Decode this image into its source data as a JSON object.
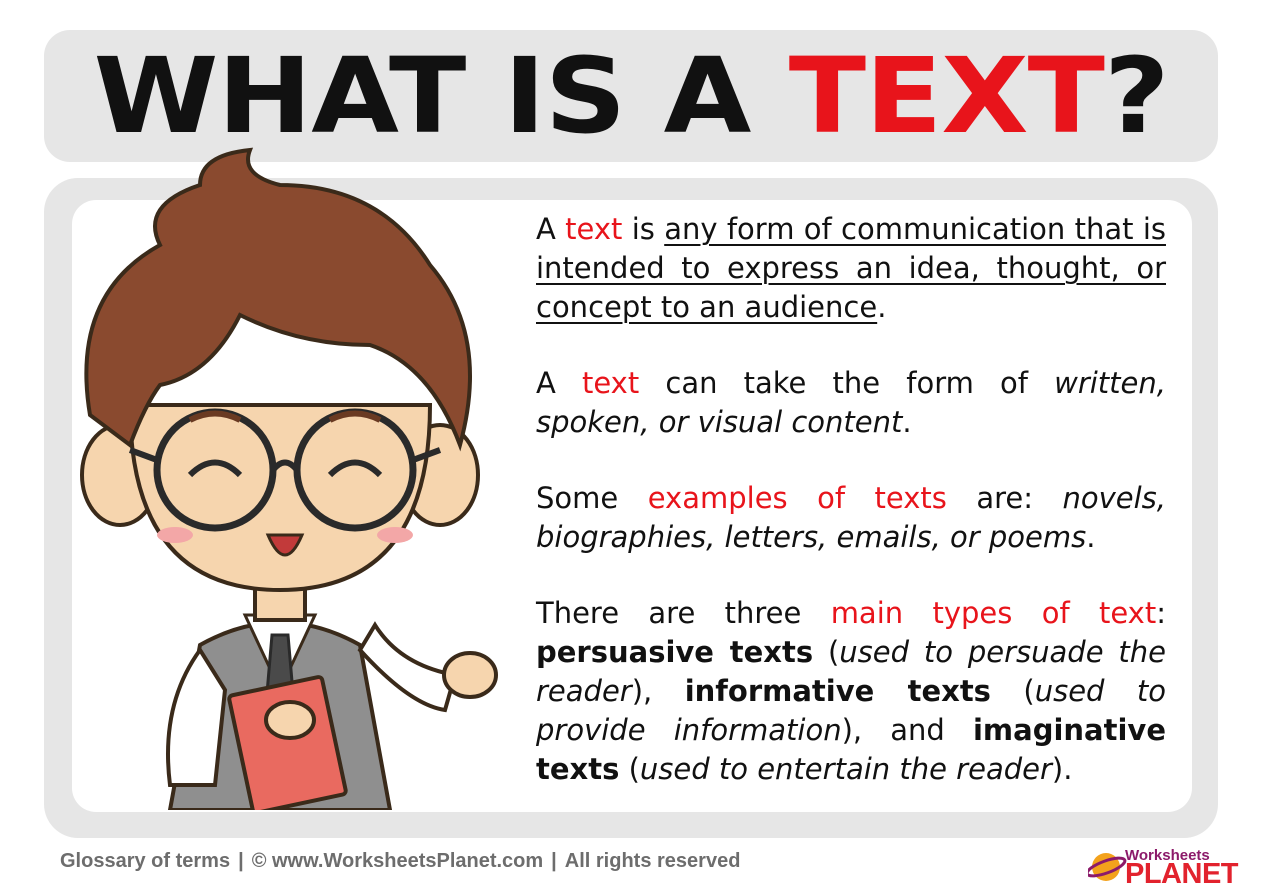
{
  "title": {
    "prefix": "WHAT IS A ",
    "accent": "TEXT",
    "suffix": "?"
  },
  "paragraphs": {
    "p1": {
      "a": "A ",
      "red": "text",
      "is": " is ",
      "def": "any form of communication that is intended to express an idea, thought, or concept to an audience",
      "end": "."
    },
    "p2": {
      "a": "A ",
      "red": "text",
      "mid": " can take the form of ",
      "ital": "written, spoken, or visual content",
      "end": "."
    },
    "p3": {
      "a": "Some ",
      "red": "examples of texts",
      "mid": " are: ",
      "ital": "novels, biographies, letters, emails, or poems",
      "end": "."
    },
    "p4": {
      "a": "There are three ",
      "red": "main types of text",
      "colon": ":",
      "t1": "persuasive texts",
      "o1": " (",
      "d1": "used to persuade the reader",
      "c1": "), ",
      "t2": "informative texts",
      "o2": " (",
      "d2": "used to provide information",
      "c2": "), and ",
      "t3": "imaginative texts",
      "o3": " (",
      "d3": "used to entertain the reader",
      "c3": ")."
    }
  },
  "footer": {
    "glossary": "Glossary of terms",
    "sep1": "|",
    "copyright": "© www.WorksheetsPlanet.com",
    "sep2": "|",
    "rights": "All rights reserved"
  },
  "logo": {
    "line1": "Worksheets",
    "line2": "PLANET"
  },
  "colors": {
    "accent": "#e8141b",
    "panel": "#e6e6e6",
    "text": "#111111",
    "footer": "#6d6d6d"
  },
  "illustration": "cartoon-boy-with-glasses-holding-notebook"
}
